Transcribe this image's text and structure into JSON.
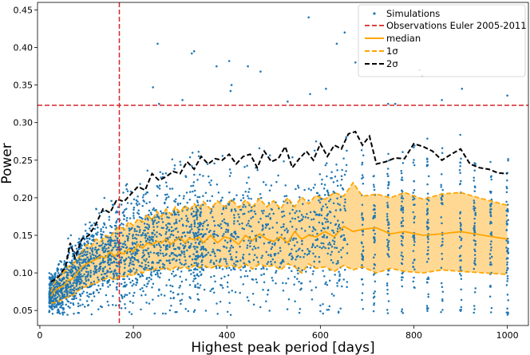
{
  "chart_data": {
    "type": "scatter",
    "title": "",
    "xlabel": "Highest peak period [days]",
    "ylabel": "Power",
    "xlim": [
      -5,
      1045
    ],
    "ylim": [
      0.03,
      0.46
    ],
    "x_ticks": [
      0,
      200,
      400,
      600,
      800,
      1000
    ],
    "y_ticks": [
      0.05,
      0.1,
      0.15,
      0.2,
      0.25,
      0.3,
      0.35,
      0.4,
      0.45
    ],
    "legend_position": "top-right",
    "observation": {
      "label": "Observations Euler 2005-2011",
      "period": 170,
      "power": 0.323,
      "color": "#d62728"
    },
    "simulations": {
      "label": "Simulations",
      "color": "#1f77b4",
      "n_points": 3000,
      "outliers": [
        {
          "x": 252,
          "y": 0.405
        },
        {
          "x": 330,
          "y": 0.395
        },
        {
          "x": 325,
          "y": 0.392
        },
        {
          "x": 378,
          "y": 0.375
        },
        {
          "x": 405,
          "y": 0.382
        },
        {
          "x": 445,
          "y": 0.375
        },
        {
          "x": 472,
          "y": 0.368
        },
        {
          "x": 575,
          "y": 0.44
        },
        {
          "x": 578,
          "y": 0.338
        },
        {
          "x": 410,
          "y": 0.35
        },
        {
          "x": 408,
          "y": 0.342
        },
        {
          "x": 612,
          "y": 0.345
        },
        {
          "x": 635,
          "y": 0.405
        },
        {
          "x": 652,
          "y": 0.42
        },
        {
          "x": 675,
          "y": 0.38
        },
        {
          "x": 812,
          "y": 0.37
        },
        {
          "x": 818,
          "y": 0.362
        },
        {
          "x": 903,
          "y": 0.345
        },
        {
          "x": 242,
          "y": 0.347
        },
        {
          "x": 1000,
          "y": 0.336
        },
        {
          "x": 305,
          "y": 0.33
        },
        {
          "x": 255,
          "y": 0.325
        },
        {
          "x": 530,
          "y": 0.328
        },
        {
          "x": 745,
          "y": 0.325
        },
        {
          "x": 860,
          "y": 0.33
        },
        {
          "x": 760,
          "y": 0.325
        }
      ]
    },
    "series": [
      {
        "name": "median",
        "color": "#ffa500",
        "style": "solid",
        "x": [
          24,
          30,
          40,
          50,
          60,
          70,
          80,
          90,
          100,
          110,
          120,
          130,
          140,
          150,
          160,
          170,
          180,
          190,
          200,
          210,
          220,
          230,
          240,
          250,
          260,
          270,
          280,
          290,
          300,
          310,
          320,
          330,
          340,
          350,
          365,
          380,
          395,
          410,
          425,
          440,
          455,
          470,
          485,
          500,
          515,
          530,
          545,
          560,
          575,
          590,
          610,
          630,
          650,
          670,
          690,
          720,
          750,
          780,
          820,
          860,
          900,
          950,
          1000
        ],
        "values": [
          0.069,
          0.075,
          0.08,
          0.082,
          0.09,
          0.092,
          0.1,
          0.108,
          0.112,
          0.115,
          0.118,
          0.122,
          0.12,
          0.128,
          0.122,
          0.128,
          0.125,
          0.132,
          0.128,
          0.138,
          0.133,
          0.14,
          0.137,
          0.142,
          0.14,
          0.145,
          0.138,
          0.143,
          0.147,
          0.14,
          0.146,
          0.144,
          0.148,
          0.14,
          0.15,
          0.14,
          0.148,
          0.145,
          0.138,
          0.15,
          0.143,
          0.152,
          0.145,
          0.142,
          0.148,
          0.14,
          0.155,
          0.145,
          0.15,
          0.148,
          0.155,
          0.148,
          0.162,
          0.155,
          0.158,
          0.16,
          0.152,
          0.155,
          0.15,
          0.152,
          0.155,
          0.15,
          0.145
        ]
      },
      {
        "name": "1σ",
        "color": "#ffa500",
        "style": "dashed",
        "x": [
          24,
          30,
          40,
          50,
          60,
          70,
          80,
          90,
          100,
          110,
          120,
          130,
          140,
          150,
          160,
          170,
          180,
          190,
          200,
          210,
          220,
          230,
          240,
          250,
          260,
          270,
          280,
          290,
          300,
          310,
          320,
          330,
          340,
          350,
          365,
          380,
          395,
          410,
          425,
          440,
          455,
          470,
          485,
          500,
          515,
          530,
          545,
          560,
          575,
          590,
          610,
          630,
          650,
          670,
          690,
          720,
          750,
          780,
          820,
          860,
          900,
          950,
          1000
        ],
        "upper": [
          0.075,
          0.085,
          0.095,
          0.1,
          0.108,
          0.112,
          0.118,
          0.128,
          0.138,
          0.135,
          0.145,
          0.142,
          0.15,
          0.148,
          0.155,
          0.162,
          0.158,
          0.168,
          0.163,
          0.172,
          0.168,
          0.178,
          0.17,
          0.182,
          0.175,
          0.185,
          0.178,
          0.188,
          0.18,
          0.19,
          0.183,
          0.192,
          0.186,
          0.195,
          0.185,
          0.196,
          0.188,
          0.198,
          0.187,
          0.197,
          0.188,
          0.199,
          0.188,
          0.196,
          0.185,
          0.2,
          0.188,
          0.201,
          0.192,
          0.203,
          0.198,
          0.207,
          0.202,
          0.22,
          0.202,
          0.205,
          0.2,
          0.207,
          0.198,
          0.205,
          0.207,
          0.198,
          0.19
        ],
        "lower": [
          0.06,
          0.06,
          0.062,
          0.065,
          0.068,
          0.07,
          0.075,
          0.08,
          0.082,
          0.085,
          0.086,
          0.09,
          0.092,
          0.094,
          0.09,
          0.096,
          0.095,
          0.098,
          0.096,
          0.102,
          0.1,
          0.104,
          0.103,
          0.106,
          0.105,
          0.107,
          0.103,
          0.108,
          0.106,
          0.108,
          0.105,
          0.11,
          0.107,
          0.11,
          0.106,
          0.11,
          0.108,
          0.11,
          0.106,
          0.112,
          0.105,
          0.112,
          0.108,
          0.11,
          0.104,
          0.112,
          0.108,
          0.1,
          0.112,
          0.106,
          0.108,
          0.102,
          0.11,
          0.104,
          0.108,
          0.1,
          0.106,
          0.102,
          0.1,
          0.104,
          0.102,
          0.1,
          0.098
        ]
      },
      {
        "name": "2σ",
        "color": "#000000",
        "style": "dashed",
        "x": [
          24,
          40,
          55,
          65,
          75,
          90,
          105,
          120,
          135,
          150,
          165,
          180,
          195,
          210,
          225,
          240,
          255,
          270,
          285,
          300,
          315,
          330,
          345,
          360,
          375,
          390,
          405,
          420,
          435,
          450,
          465,
          480,
          495,
          510,
          525,
          540,
          555,
          570,
          585,
          600,
          615,
          630,
          645,
          660,
          675,
          690,
          705,
          720,
          740,
          760,
          780,
          800,
          820,
          840,
          860,
          880,
          900,
          920,
          940,
          960,
          980,
          1000
        ],
        "values": [
          0.088,
          0.095,
          0.108,
          0.14,
          0.12,
          0.145,
          0.15,
          0.165,
          0.185,
          0.18,
          0.198,
          0.195,
          0.205,
          0.215,
          0.21,
          0.232,
          0.223,
          0.228,
          0.235,
          0.232,
          0.248,
          0.238,
          0.255,
          0.245,
          0.252,
          0.25,
          0.258,
          0.245,
          0.255,
          0.258,
          0.24,
          0.262,
          0.248,
          0.252,
          0.268,
          0.24,
          0.252,
          0.262,
          0.25,
          0.272,
          0.255,
          0.27,
          0.265,
          0.285,
          0.288,
          0.27,
          0.282,
          0.245,
          0.248,
          0.253,
          0.252,
          0.272,
          0.268,
          0.262,
          0.25,
          0.258,
          0.265,
          0.245,
          0.24,
          0.238,
          0.233,
          0.232
        ]
      }
    ],
    "legend": [
      {
        "label": "Simulations",
        "kind": "scatter"
      },
      {
        "label": "Observations Euler 2005-2011",
        "kind": "red-dashed"
      },
      {
        "label": "median",
        "kind": "orange-solid"
      },
      {
        "label": "1σ",
        "kind": "orange-dashed"
      },
      {
        "label": "2σ",
        "kind": "black-dashed"
      }
    ]
  }
}
